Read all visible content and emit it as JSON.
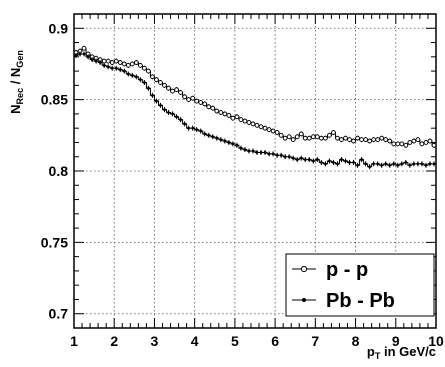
{
  "chart_data": {
    "type": "line",
    "ylabel": {
      "main1": "N",
      "sub1": "Rec",
      "main2": " / N",
      "sub2": "Gen"
    },
    "xlabel": {
      "main": "p",
      "sub": "T",
      "rest": " in GeV/c"
    },
    "xlim": [
      1,
      10
    ],
    "ylim": [
      0.69,
      0.91
    ],
    "grid": true,
    "legend_position": "bottom-right",
    "x_ticks": [
      1,
      2,
      3,
      4,
      5,
      6,
      7,
      8,
      9,
      10
    ],
    "y_ticks": [
      0.7,
      0.75,
      0.8,
      0.85,
      0.9
    ],
    "y_tick_labels": [
      "0.7",
      "0.75",
      "0.8",
      "0.85",
      "0.9"
    ],
    "series": [
      {
        "name": "p - p",
        "marker": "open-circle",
        "color": "#000000",
        "x": [
          1.05,
          1.15,
          1.25,
          1.35,
          1.45,
          1.55,
          1.65,
          1.75,
          1.85,
          1.95,
          2.05,
          2.15,
          2.25,
          2.35,
          2.45,
          2.55,
          2.65,
          2.75,
          2.85,
          2.95,
          3.05,
          3.15,
          3.25,
          3.35,
          3.45,
          3.55,
          3.65,
          3.75,
          3.85,
          3.95,
          4.05,
          4.15,
          4.25,
          4.35,
          4.45,
          4.55,
          4.65,
          4.75,
          4.85,
          4.95,
          5.05,
          5.15,
          5.25,
          5.35,
          5.45,
          5.55,
          5.65,
          5.75,
          5.85,
          5.95,
          6.05,
          6.15,
          6.25,
          6.35,
          6.45,
          6.55,
          6.65,
          6.75,
          6.85,
          6.95,
          7.05,
          7.15,
          7.25,
          7.35,
          7.45,
          7.55,
          7.65,
          7.75,
          7.85,
          7.95,
          8.05,
          8.15,
          8.25,
          8.35,
          8.45,
          8.55,
          8.65,
          8.75,
          8.85,
          8.95,
          9.05,
          9.15,
          9.25,
          9.35,
          9.45,
          9.55,
          9.65,
          9.75,
          9.85,
          9.95
        ],
        "y": [
          0.883,
          0.884,
          0.886,
          0.882,
          0.88,
          0.879,
          0.878,
          0.877,
          0.877,
          0.876,
          0.877,
          0.876,
          0.875,
          0.874,
          0.875,
          0.876,
          0.874,
          0.872,
          0.87,
          0.866,
          0.864,
          0.862,
          0.86,
          0.858,
          0.856,
          0.857,
          0.855,
          0.852,
          0.85,
          0.851,
          0.849,
          0.848,
          0.847,
          0.845,
          0.844,
          0.842,
          0.841,
          0.84,
          0.839,
          0.837,
          0.838,
          0.836,
          0.835,
          0.834,
          0.833,
          0.832,
          0.831,
          0.83,
          0.829,
          0.828,
          0.827,
          0.825,
          0.823,
          0.824,
          0.822,
          0.824,
          0.826,
          0.823,
          0.823,
          0.824,
          0.824,
          0.823,
          0.823,
          0.825,
          0.827,
          0.823,
          0.822,
          0.823,
          0.822,
          0.821,
          0.823,
          0.822,
          0.822,
          0.821,
          0.822,
          0.822,
          0.823,
          0.822,
          0.821,
          0.819,
          0.819,
          0.819,
          0.818,
          0.82,
          0.821,
          0.822,
          0.819,
          0.82,
          0.821,
          0.818
        ]
      },
      {
        "name": "Pb - Pb",
        "marker": "filled-dot",
        "color": "#000000",
        "x": [
          1.05,
          1.15,
          1.25,
          1.35,
          1.45,
          1.55,
          1.65,
          1.75,
          1.85,
          1.95,
          2.05,
          2.15,
          2.25,
          2.35,
          2.45,
          2.55,
          2.65,
          2.75,
          2.85,
          2.95,
          3.05,
          3.15,
          3.25,
          3.35,
          3.45,
          3.55,
          3.65,
          3.75,
          3.85,
          3.95,
          4.05,
          4.15,
          4.25,
          4.35,
          4.45,
          4.55,
          4.65,
          4.75,
          4.85,
          4.95,
          5.05,
          5.15,
          5.25,
          5.35,
          5.45,
          5.55,
          5.65,
          5.75,
          5.85,
          5.95,
          6.05,
          6.15,
          6.25,
          6.35,
          6.45,
          6.55,
          6.65,
          6.75,
          6.85,
          6.95,
          7.05,
          7.15,
          7.25,
          7.35,
          7.45,
          7.55,
          7.65,
          7.75,
          7.85,
          7.95,
          8.05,
          8.15,
          8.25,
          8.35,
          8.45,
          8.55,
          8.65,
          8.75,
          8.85,
          8.95,
          9.05,
          9.15,
          9.25,
          9.35,
          9.45,
          9.55,
          9.65,
          9.75,
          9.85,
          9.95
        ],
        "y": [
          0.881,
          0.882,
          0.882,
          0.88,
          0.878,
          0.877,
          0.876,
          0.874,
          0.873,
          0.872,
          0.872,
          0.871,
          0.87,
          0.868,
          0.867,
          0.866,
          0.864,
          0.862,
          0.858,
          0.853,
          0.849,
          0.846,
          0.843,
          0.841,
          0.84,
          0.838,
          0.836,
          0.833,
          0.83,
          0.83,
          0.829,
          0.828,
          0.826,
          0.825,
          0.824,
          0.823,
          0.822,
          0.821,
          0.82,
          0.819,
          0.818,
          0.816,
          0.815,
          0.814,
          0.814,
          0.813,
          0.813,
          0.813,
          0.812,
          0.812,
          0.811,
          0.811,
          0.81,
          0.81,
          0.809,
          0.808,
          0.809,
          0.808,
          0.808,
          0.807,
          0.808,
          0.806,
          0.805,
          0.807,
          0.806,
          0.805,
          0.808,
          0.807,
          0.806,
          0.806,
          0.804,
          0.808,
          0.805,
          0.803,
          0.805,
          0.805,
          0.804,
          0.805,
          0.804,
          0.805,
          0.804,
          0.805,
          0.806,
          0.804,
          0.805,
          0.805,
          0.805,
          0.804,
          0.805,
          0.805
        ]
      }
    ]
  }
}
